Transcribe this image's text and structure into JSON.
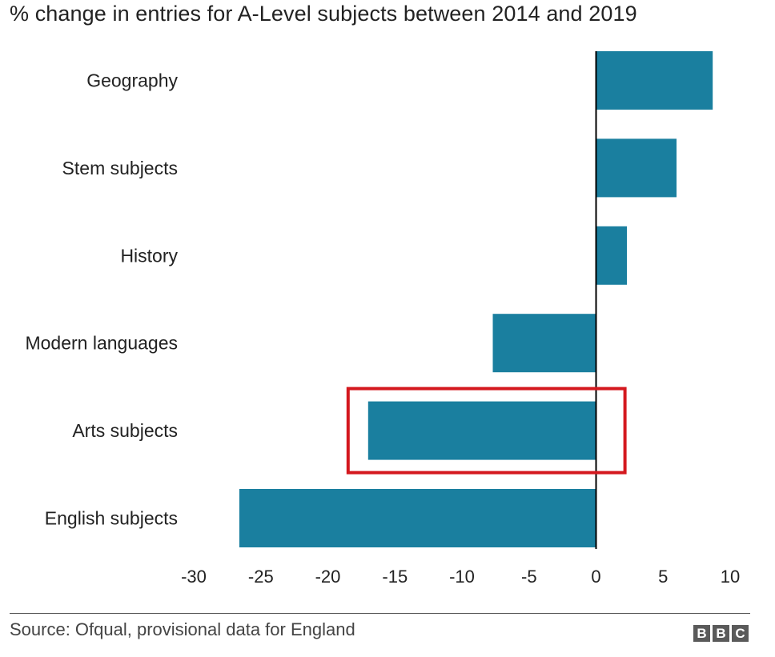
{
  "chart_data": {
    "type": "bar",
    "orientation": "horizontal",
    "title": "% change in entries for A-Level subjects between 2014 and 2019",
    "categories": [
      "Geography",
      "Stem subjects",
      "History",
      "Modern languages",
      "Arts subjects",
      "English subjects"
    ],
    "values": [
      8.7,
      6.0,
      2.3,
      -7.7,
      -17.0,
      -26.6
    ],
    "xlim": [
      -30,
      10
    ],
    "xticks": [
      -30,
      -25,
      -20,
      -15,
      -10,
      -5,
      0,
      5,
      10
    ],
    "xlabel": "",
    "ylabel": "",
    "grid": false,
    "legend": "none",
    "highlighted_category": "Arts subjects",
    "colors": {
      "bar": "#1a7f9f",
      "zero_line": "#000000",
      "highlight_box": "#d4181e"
    }
  },
  "footer": {
    "source": "Source: Ofqual, provisional data for England",
    "logo_letters": [
      "B",
      "B",
      "C"
    ]
  }
}
